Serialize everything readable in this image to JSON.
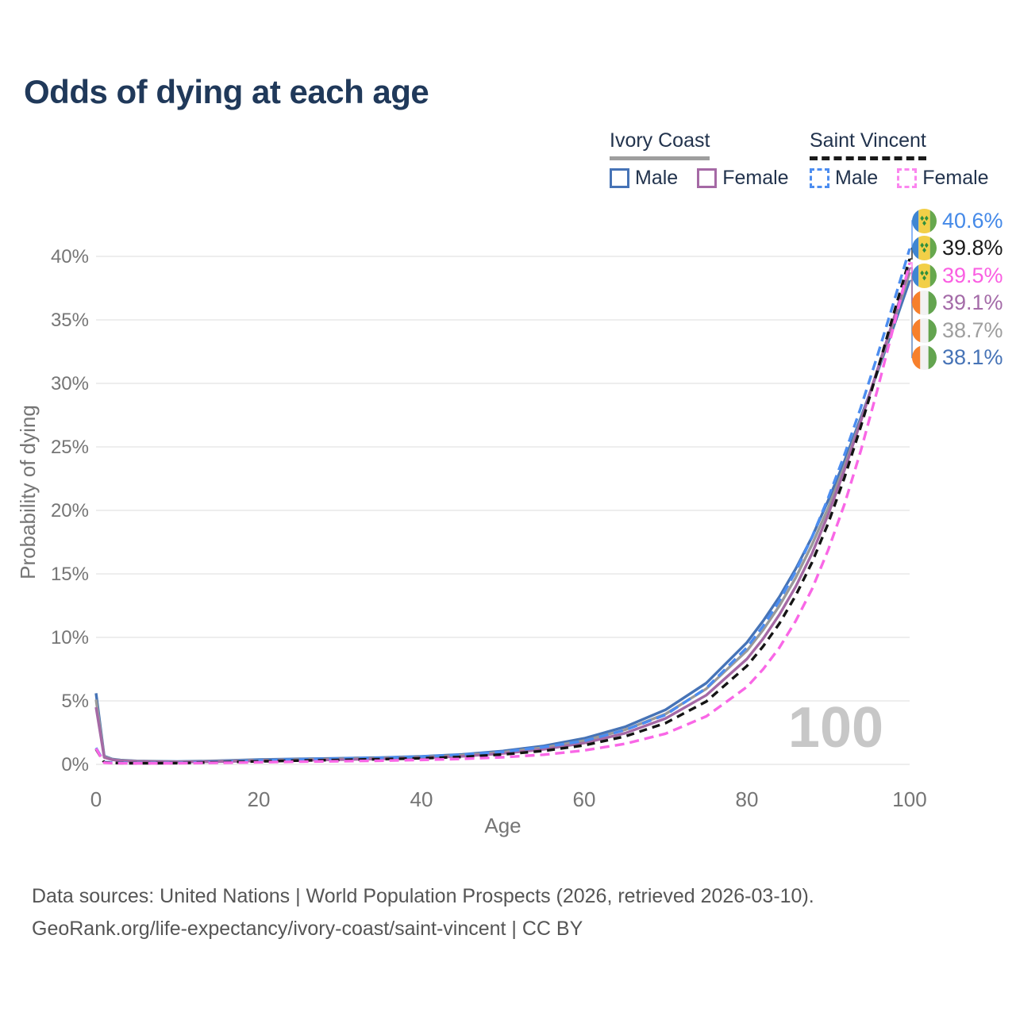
{
  "header": {
    "title": "Odds of dying at each age"
  },
  "legend": {
    "groups": [
      {
        "name": "Ivory Coast",
        "line_style": "solid",
        "underline_color": "#9e9e9e",
        "items": [
          {
            "label": "Male",
            "color": "#4673b6"
          },
          {
            "label": "Female",
            "color": "#a569a5"
          }
        ]
      },
      {
        "name": "Saint Vincent",
        "line_style": "dashed",
        "underline_color": "#1a1a1a",
        "items": [
          {
            "label": "Male",
            "color": "#4c8df0"
          },
          {
            "label": "Female",
            "color": "#fb86ef"
          }
        ]
      }
    ]
  },
  "chart_data": {
    "type": "line",
    "title": "Odds of dying at each age",
    "xlabel": "Age",
    "ylabel": "Probability of dying",
    "x_ticks": [
      0,
      20,
      40,
      60,
      80,
      100
    ],
    "y_ticks_percent": [
      0,
      5,
      10,
      15,
      20,
      25,
      30,
      35,
      40
    ],
    "xlim": [
      0,
      100
    ],
    "ylim_percent": [
      0,
      42
    ],
    "grid": "horizontal",
    "legend_position": "top-right",
    "watermark": "100",
    "ages": [
      0,
      1,
      2,
      3,
      5,
      10,
      15,
      20,
      25,
      30,
      35,
      40,
      45,
      50,
      55,
      60,
      65,
      70,
      75,
      80,
      82,
      84,
      86,
      88,
      90,
      92,
      94,
      96,
      98,
      100
    ],
    "series": [
      {
        "id": "ivory-coast-male",
        "country": "Ivory Coast",
        "sex": "male",
        "style": "solid",
        "color": "#4673b6",
        "end_value": "38.1%",
        "end_label_row": 5,
        "values_percent": [
          5.6,
          0.65,
          0.42,
          0.34,
          0.27,
          0.22,
          0.28,
          0.38,
          0.43,
          0.48,
          0.54,
          0.63,
          0.79,
          1.05,
          1.45,
          2.05,
          2.95,
          4.3,
          6.4,
          9.6,
          11.3,
          13.2,
          15.4,
          17.9,
          20.8,
          23.9,
          27.3,
          30.8,
          34.4,
          38.1
        ]
      },
      {
        "id": "ivory-coast-combined",
        "country": "Ivory Coast",
        "sex": "combined",
        "style": "solid",
        "color": "#9a9a9a",
        "end_value": "38.7%",
        "end_label_row": 4,
        "values_percent": [
          5.1,
          0.6,
          0.39,
          0.31,
          0.25,
          0.2,
          0.25,
          0.33,
          0.38,
          0.43,
          0.49,
          0.57,
          0.72,
          0.96,
          1.32,
          1.87,
          2.72,
          3.97,
          5.95,
          8.95,
          10.6,
          12.5,
          14.7,
          17.3,
          20.2,
          23.5,
          27.1,
          30.9,
          34.8,
          38.7
        ]
      },
      {
        "id": "ivory-coast-female",
        "country": "Ivory Coast",
        "sex": "female",
        "style": "solid",
        "color": "#a569a5",
        "end_value": "39.1%",
        "end_label_row": 3,
        "values_percent": [
          4.5,
          0.55,
          0.36,
          0.29,
          0.23,
          0.18,
          0.22,
          0.28,
          0.32,
          0.37,
          0.43,
          0.51,
          0.64,
          0.86,
          1.18,
          1.68,
          2.45,
          3.62,
          5.45,
          8.3,
          9.9,
          11.8,
          14.0,
          16.6,
          19.7,
          23.2,
          27.0,
          31.0,
          35.0,
          39.1
        ]
      },
      {
        "id": "saint-vincent-male",
        "country": "Saint Vincent",
        "sex": "male",
        "style": "dashed",
        "color": "#4c8df0",
        "end_value": "40.6%",
        "end_label_row": 0,
        "values_percent": [
          1.3,
          0.18,
          0.14,
          0.12,
          0.1,
          0.12,
          0.2,
          0.31,
          0.39,
          0.46,
          0.52,
          0.61,
          0.76,
          0.99,
          1.36,
          1.85,
          2.7,
          3.9,
          6.0,
          9.2,
          10.9,
          12.9,
          15.2,
          17.9,
          21.0,
          24.4,
          28.1,
          32.1,
          36.3,
          40.6
        ]
      },
      {
        "id": "saint-vincent-combined",
        "country": "Saint Vincent",
        "sex": "combined",
        "style": "dashed",
        "color": "#141414",
        "end_value": "39.8%",
        "end_label_row": 1,
        "values_percent": [
          1.2,
          0.15,
          0.12,
          0.1,
          0.09,
          0.1,
          0.16,
          0.24,
          0.3,
          0.35,
          0.41,
          0.48,
          0.59,
          0.78,
          1.06,
          1.5,
          2.2,
          3.25,
          4.95,
          7.75,
          9.3,
          11.1,
          13.3,
          15.9,
          19.0,
          22.6,
          26.6,
          30.9,
          35.4,
          39.8
        ]
      },
      {
        "id": "saint-vincent-female",
        "country": "Saint Vincent",
        "sex": "female",
        "style": "dashed",
        "color": "#f967e6",
        "end_value": "39.5%",
        "end_label_row": 2,
        "values_percent": [
          1.25,
          0.13,
          0.1,
          0.09,
          0.08,
          0.09,
          0.12,
          0.17,
          0.21,
          0.25,
          0.29,
          0.35,
          0.43,
          0.56,
          0.76,
          1.1,
          1.62,
          2.42,
          3.78,
          6.1,
          7.5,
          9.2,
          11.3,
          13.8,
          16.9,
          20.5,
          24.7,
          29.4,
          34.4,
          39.5
        ]
      }
    ]
  },
  "end_labels": [
    {
      "flag": "saint-vincent",
      "value": "40.6%",
      "color": "#4489e8"
    },
    {
      "flag": "saint-vincent",
      "value": "39.8%",
      "color": "#1a1a1a"
    },
    {
      "flag": "saint-vincent",
      "value": "39.5%",
      "color": "#fa5fe2"
    },
    {
      "flag": "ivory-coast",
      "value": "39.1%",
      "color": "#a46ba8"
    },
    {
      "flag": "ivory-coast",
      "value": "38.7%",
      "color": "#9e9e9e"
    },
    {
      "flag": "ivory-coast",
      "value": "38.1%",
      "color": "#4673b6"
    }
  ],
  "footer": {
    "line1": "Data sources: United Nations | World Population Prospects (2026, retrieved 2026-03-10).",
    "line2": "GeoRank.org/life-expectancy/ivory-coast/saint-vincent | CC BY"
  }
}
